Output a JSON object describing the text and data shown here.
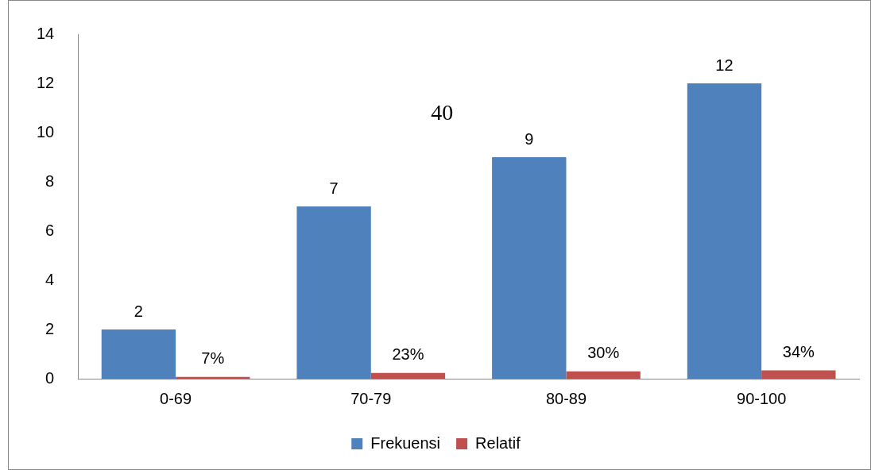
{
  "chart_data": {
    "type": "bar",
    "categories": [
      "0-69",
      "70-79",
      "80-89",
      "90-100"
    ],
    "series": [
      {
        "name": "Frekuensi",
        "color": "#4f81bd",
        "values": [
          2,
          7,
          9,
          12
        ],
        "value_labels": [
          "2",
          "7",
          "9",
          "12"
        ]
      },
      {
        "name": "Relatif",
        "color": "#c0504d",
        "values": [
          0.07,
          0.23,
          0.3,
          0.34
        ],
        "value_labels": [
          "7%",
          "23%",
          "30%",
          "34%"
        ]
      }
    ],
    "ylim": [
      0,
      14
    ],
    "yticks": [
      0,
      2,
      4,
      6,
      8,
      10,
      12,
      14
    ],
    "grid": false,
    "legend": "bottom",
    "annotations": [
      "40"
    ]
  }
}
